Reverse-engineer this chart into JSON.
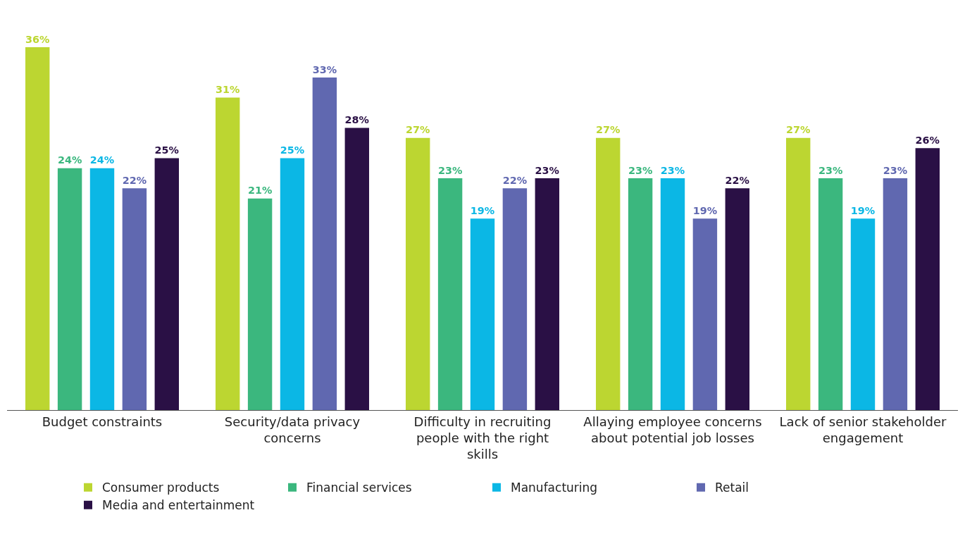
{
  "chart_data": {
    "type": "bar",
    "categories": [
      "Budget constraints",
      "Security/data privacy concerns",
      "Difficulty in recruiting people with the right skills",
      "Allaying employee concerns about potential job losses",
      "Lack of senior stakeholder engagement"
    ],
    "series": [
      {
        "name": "Consumer products",
        "color": "#bcd631",
        "values": [
          36,
          31,
          27,
          27,
          27
        ],
        "value_labels": [
          "36%",
          "31%",
          "27%",
          "27%",
          "27%"
        ]
      },
      {
        "name": "Financial services",
        "color": "#3bb77e",
        "values": [
          24,
          21,
          23,
          23,
          23
        ],
        "value_labels": [
          "24%",
          "21%",
          "23%",
          "23%",
          "23%"
        ]
      },
      {
        "name": "Manufacturing",
        "color": "#0bb7e5",
        "values": [
          24,
          25,
          19,
          23,
          19
        ],
        "value_labels": [
          "24%",
          "25%",
          "19%",
          "23%",
          "19%"
        ]
      },
      {
        "name": "Retail",
        "color": "#6068b0",
        "values": [
          22,
          33,
          22,
          19,
          23
        ],
        "value_labels": [
          "22%",
          "33%",
          "22%",
          "19%",
          "23%"
        ]
      },
      {
        "name": "Media and entertainment",
        "color": "#2a1045",
        "values": [
          25,
          28,
          23,
          22,
          26
        ],
        "value_labels": [
          "25%",
          "28%",
          "23%",
          "22%",
          "26%"
        ]
      }
    ],
    "legend": "bottom"
  }
}
